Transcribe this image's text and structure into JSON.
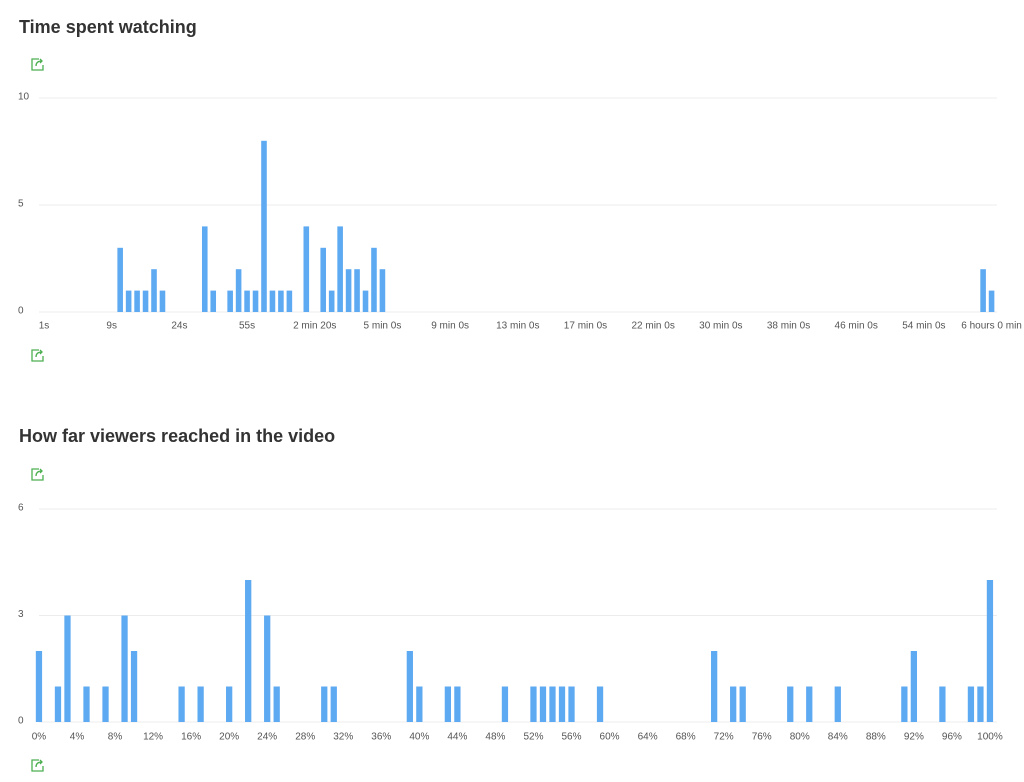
{
  "chart_data": [
    {
      "type": "bar",
      "title": "Time spent watching",
      "color": "#5eaaf2",
      "grid": true,
      "ylim": [
        0,
        10
      ],
      "yticks": [
        0,
        5,
        10
      ],
      "categories": [
        "1s",
        null,
        null,
        null,
        null,
        null,
        null,
        null,
        "9s",
        null,
        null,
        null,
        null,
        null,
        null,
        null,
        "24s",
        null,
        null,
        null,
        null,
        null,
        null,
        null,
        "55s",
        null,
        null,
        null,
        null,
        null,
        null,
        null,
        "2 min 20s",
        null,
        null,
        null,
        null,
        null,
        null,
        null,
        "5 min 0s",
        null,
        null,
        null,
        null,
        null,
        null,
        null,
        "9 min 0s",
        null,
        null,
        null,
        null,
        null,
        null,
        null,
        "13 min 0s",
        null,
        null,
        null,
        null,
        null,
        null,
        null,
        "17 min 0s",
        null,
        null,
        null,
        null,
        null,
        null,
        null,
        "22 min 0s",
        null,
        null,
        null,
        null,
        null,
        null,
        null,
        "30 min 0s",
        null,
        null,
        null,
        null,
        null,
        null,
        null,
        "38 min 0s",
        null,
        null,
        null,
        null,
        null,
        null,
        null,
        "46 min 0s",
        null,
        null,
        null,
        null,
        null,
        null,
        null,
        "54 min 0s",
        null,
        null,
        null,
        null,
        null,
        null,
        null,
        "6 hours 0 min"
      ],
      "values": [
        0,
        0,
        0,
        0,
        0,
        0,
        0,
        0,
        0,
        3,
        1,
        1,
        1,
        2,
        1,
        0,
        0,
        0,
        0,
        4,
        1,
        0,
        1,
        2,
        1,
        1,
        8,
        1,
        1,
        1,
        0,
        4,
        0,
        3,
        1,
        4,
        2,
        2,
        1,
        3,
        2,
        0,
        0,
        0,
        0,
        0,
        0,
        0,
        0,
        0,
        0,
        0,
        0,
        0,
        0,
        0,
        0,
        0,
        0,
        0,
        0,
        0,
        0,
        0,
        0,
        0,
        0,
        0,
        0,
        0,
        0,
        0,
        0,
        0,
        0,
        0,
        0,
        0,
        0,
        0,
        0,
        0,
        0,
        0,
        0,
        0,
        0,
        0,
        0,
        0,
        0,
        0,
        0,
        0,
        0,
        0,
        0,
        0,
        0,
        0,
        0,
        0,
        0,
        0,
        0,
        0,
        0,
        0,
        0,
        0,
        0,
        2,
        1
      ]
    },
    {
      "type": "bar",
      "title": "How far viewers reached in the video",
      "color": "#5eaaf2",
      "grid": true,
      "ylim": [
        0,
        6
      ],
      "yticks": [
        0,
        3,
        6
      ],
      "categories": [
        "0%",
        null,
        null,
        null,
        "4%",
        null,
        null,
        null,
        "8%",
        null,
        null,
        null,
        "12%",
        null,
        null,
        null,
        "16%",
        null,
        null,
        null,
        "20%",
        null,
        null,
        null,
        "24%",
        null,
        null,
        null,
        "28%",
        null,
        null,
        null,
        "32%",
        null,
        null,
        null,
        "36%",
        null,
        null,
        null,
        "40%",
        null,
        null,
        null,
        "44%",
        null,
        null,
        null,
        "48%",
        null,
        null,
        null,
        "52%",
        null,
        null,
        null,
        "56%",
        null,
        null,
        null,
        "60%",
        null,
        null,
        null,
        "64%",
        null,
        null,
        null,
        "68%",
        null,
        null,
        null,
        "72%",
        null,
        null,
        null,
        "76%",
        null,
        null,
        null,
        "80%",
        null,
        null,
        null,
        "84%",
        null,
        null,
        null,
        "88%",
        null,
        null,
        null,
        "92%",
        null,
        null,
        null,
        "96%",
        null,
        null,
        null,
        "100%"
      ],
      "values": [
        2,
        0,
        1,
        3,
        0,
        1,
        0,
        1,
        0,
        3,
        2,
        0,
        0,
        0,
        0,
        1,
        0,
        1,
        0,
        0,
        1,
        0,
        4,
        0,
        3,
        1,
        0,
        0,
        0,
        0,
        1,
        1,
        0,
        0,
        0,
        0,
        0,
        0,
        0,
        2,
        1,
        0,
        0,
        1,
        1,
        0,
        0,
        0,
        0,
        1,
        0,
        0,
        1,
        1,
        1,
        1,
        1,
        0,
        0,
        1,
        0,
        0,
        0,
        0,
        0,
        0,
        0,
        0,
        0,
        0,
        0,
        2,
        0,
        1,
        1,
        0,
        0,
        0,
        0,
        1,
        0,
        1,
        0,
        0,
        1,
        0,
        0,
        0,
        0,
        0,
        0,
        1,
        2,
        0,
        0,
        1,
        0,
        0,
        1,
        1,
        4
      ]
    }
  ]
}
